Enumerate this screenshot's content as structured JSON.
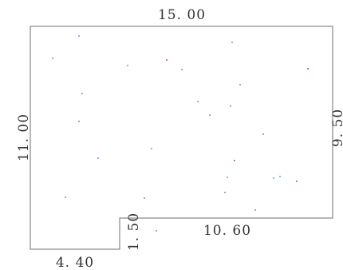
{
  "dimensions": {
    "top": "15. 00",
    "left": "11. 00",
    "right": "9. 50",
    "notch_height": "1. 50",
    "inner_bottom": "10. 60",
    "bottom": "4. 40"
  },
  "colors": {
    "line": "#6e6e6e",
    "text": "#333333",
    "speck_a": "#5aa0d8",
    "speck_b": "#d04848"
  }
}
